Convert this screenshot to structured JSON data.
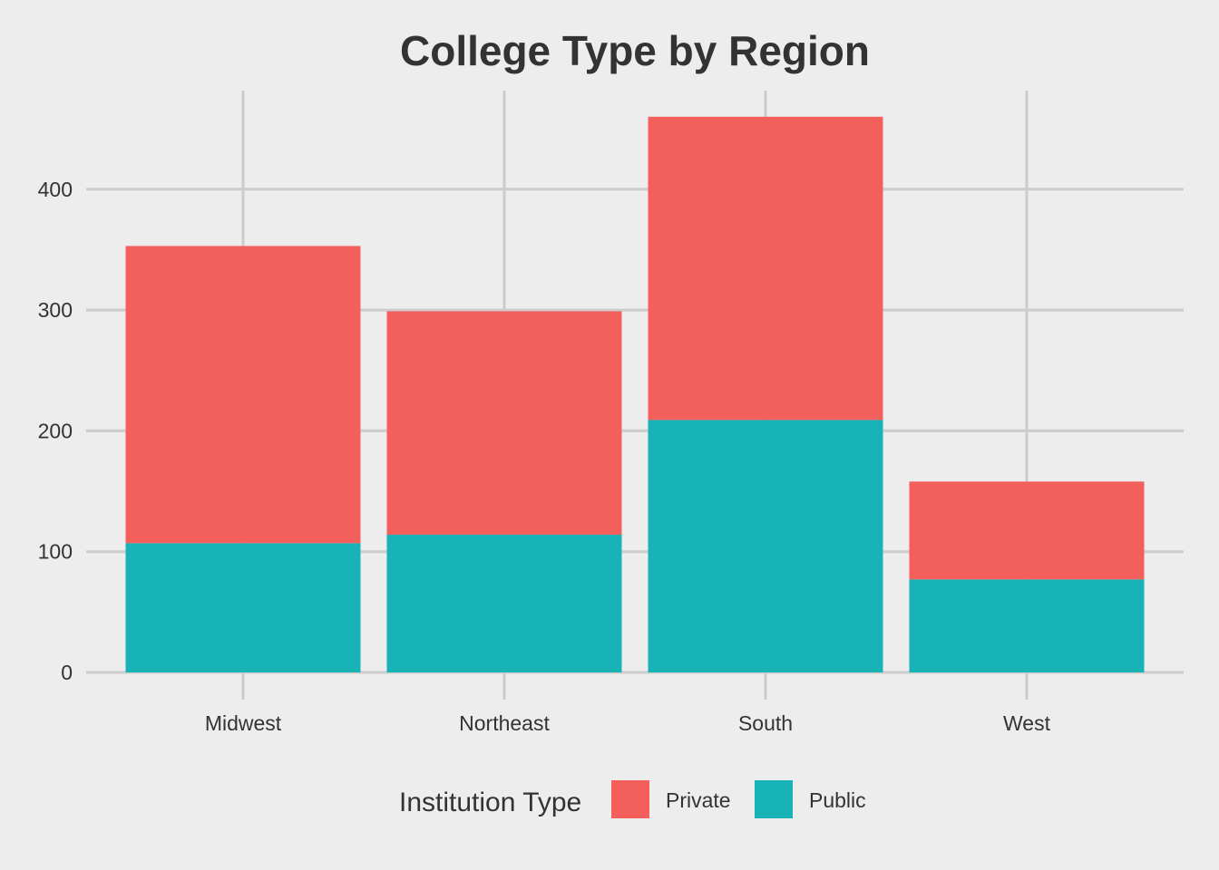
{
  "chart_data": {
    "type": "bar",
    "stacked": true,
    "title": "College Type by Region",
    "xlabel": "",
    "ylabel": "",
    "categories": [
      "Midwest",
      "Northeast",
      "South",
      "West"
    ],
    "series": [
      {
        "name": "Public",
        "values": [
          107,
          114,
          209,
          77
        ],
        "color": "#17b3b7"
      },
      {
        "name": "Private",
        "values": [
          246,
          185,
          251,
          81
        ],
        "color": "#f35f5b"
      }
    ],
    "ylim": [
      0,
      460
    ],
    "yticks": [
      0,
      100,
      200,
      300,
      400
    ],
    "grid": true,
    "legend": {
      "title": "Institution Type",
      "position": "bottom",
      "entries": [
        "Private",
        "Public"
      ]
    }
  }
}
